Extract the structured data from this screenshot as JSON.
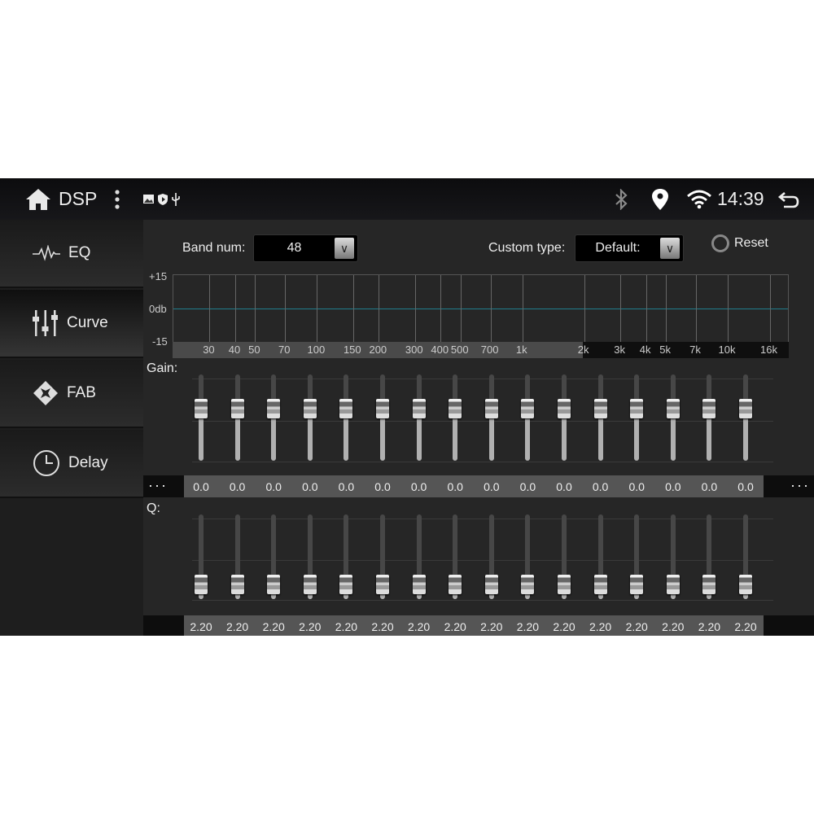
{
  "statusbar": {
    "title": "DSP",
    "time": "14:39",
    "icons": [
      "home-icon",
      "more-vert-icon",
      "image-icon",
      "shield-play-icon",
      "usb-icon",
      "bluetooth-icon",
      "location-icon",
      "wifi-icon",
      "back-icon"
    ]
  },
  "sidebar": {
    "items": [
      {
        "label": "EQ",
        "icon": "waveform-icon"
      },
      {
        "label": "Curve",
        "icon": "sliders-icon",
        "active": true
      },
      {
        "label": "FAB",
        "icon": "fader-balance-icon"
      },
      {
        "label": "Delay",
        "icon": "clock-icon"
      }
    ]
  },
  "controls": {
    "band_label": "Band num:",
    "band_value": "48",
    "custom_label": "Custom type:",
    "custom_value": "Default:",
    "reset_label": "Reset"
  },
  "graph": {
    "y_top": "+15",
    "y_mid": "0db",
    "y_bottom": "-15",
    "x_ticks": [
      "30",
      "40",
      "50",
      "70",
      "100",
      "150",
      "200",
      "300",
      "400",
      "500",
      "700",
      "1k",
      "2k",
      "3k",
      "4k",
      "5k",
      "7k",
      "10k",
      "16k"
    ],
    "curve_color": "#1f7d8c"
  },
  "gain": {
    "label": "Gain:",
    "more": "···",
    "values": [
      "0.0",
      "0.0",
      "0.0",
      "0.0",
      "0.0",
      "0.0",
      "0.0",
      "0.0",
      "0.0",
      "0.0",
      "0.0",
      "0.0",
      "0.0",
      "0.0",
      "0.0",
      "0.0"
    ]
  },
  "q": {
    "label": "Q:",
    "values": [
      "2.20",
      "2.20",
      "2.20",
      "2.20",
      "2.20",
      "2.20",
      "2.20",
      "2.20",
      "2.20",
      "2.20",
      "2.20",
      "2.20",
      "2.20",
      "2.20",
      "2.20",
      "2.20"
    ]
  }
}
